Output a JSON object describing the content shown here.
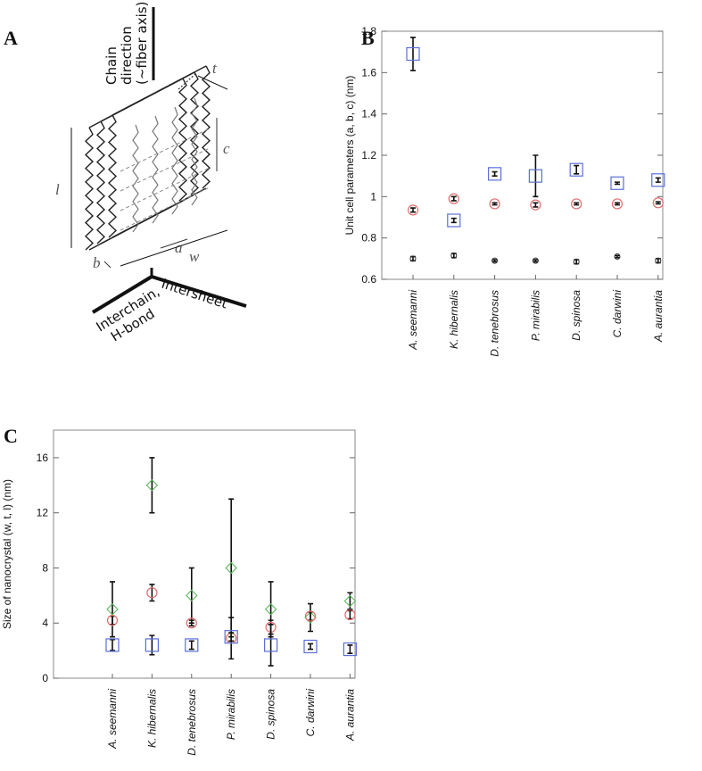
{
  "diagram": {
    "panel_label": "A",
    "chain_label": [
      "Chain",
      "direction",
      "(~fiber axis)"
    ],
    "interchain_label": [
      "Interchain,",
      "H-bond"
    ],
    "intersheet_label": "Intersheet",
    "dims": {
      "t": "t",
      "c": "c",
      "l": "l",
      "a": "a",
      "w": "w",
      "b": "b"
    }
  },
  "chart_data": [
    {
      "type": "scatter",
      "label": "B",
      "y_label": "Unit cell parameters (a, b, c) (nm)",
      "categories": [
        "A. seemanni",
        "K. hibernalis",
        "D. tenebrosus",
        "P. mirabilis",
        "D. spinosa",
        "C. darwini",
        "A. aurantia"
      ],
      "ylim": [
        0.6,
        1.8
      ],
      "yticks": [
        0.6,
        0.8,
        1,
        1.2,
        1.4,
        1.6,
        1.8
      ],
      "series": [
        {
          "color": "#5a6fd8",
          "marker": "square",
          "values": [
            1.69,
            0.885,
            1.11,
            1.1,
            1.13,
            1.065,
            1.08
          ],
          "errors": [
            0.08,
            0.01,
            0.01,
            0.1,
            0.02,
            0.005,
            0.01
          ]
        },
        {
          "color": "#e26a6a",
          "marker": "circle",
          "values": [
            0.935,
            0.99,
            0.965,
            0.96,
            0.965,
            0.965,
            0.97
          ],
          "errors": [
            0.01,
            0.01,
            0.005,
            0.01,
            0.005,
            0.005,
            0.005
          ]
        },
        {
          "color": "#333333",
          "marker": "dot",
          "values": [
            0.7,
            0.715,
            0.69,
            0.69,
            0.685,
            0.71,
            0.69
          ],
          "errors": [
            0.01,
            0.01,
            0.005,
            0.005,
            0.01,
            0.005,
            0.01
          ]
        }
      ]
    },
    {
      "type": "scatter",
      "label": "C",
      "y_label": "Size of nanocrystal (w, t, l) (nm)",
      "categories": [
        "A. seemanni",
        "K. hibernalis",
        "D. tenebrosus",
        "P. mirabilis",
        "D. spinosa",
        "C. darwini",
        "A. aurantia"
      ],
      "ylim": [
        0,
        18
      ],
      "yticks": [
        0,
        4,
        8,
        12,
        16
      ],
      "series": [
        {
          "color": "#5cb85c",
          "marker": "diamond",
          "values": [
            5,
            14,
            6,
            8,
            5,
            4.4,
            5.6
          ],
          "errors": [
            2,
            2,
            2,
            5,
            2,
            1,
            0.6
          ]
        },
        {
          "color": "#e26a6a",
          "marker": "circle",
          "values": [
            4.2,
            6.2,
            4,
            2.9,
            3.7,
            4.5,
            4.6
          ],
          "errors": [
            0.3,
            0.6,
            0.2,
            1.5,
            0.5,
            0.3,
            0.3
          ]
        },
        {
          "color": "#5a6fd8",
          "marker": "square",
          "values": [
            2.4,
            2.4,
            2.4,
            3,
            2.4,
            2.3,
            2.1
          ],
          "errors": [
            0.4,
            0.7,
            0.3,
            0.3,
            1.5,
            0.2,
            0.3
          ]
        }
      ]
    }
  ]
}
